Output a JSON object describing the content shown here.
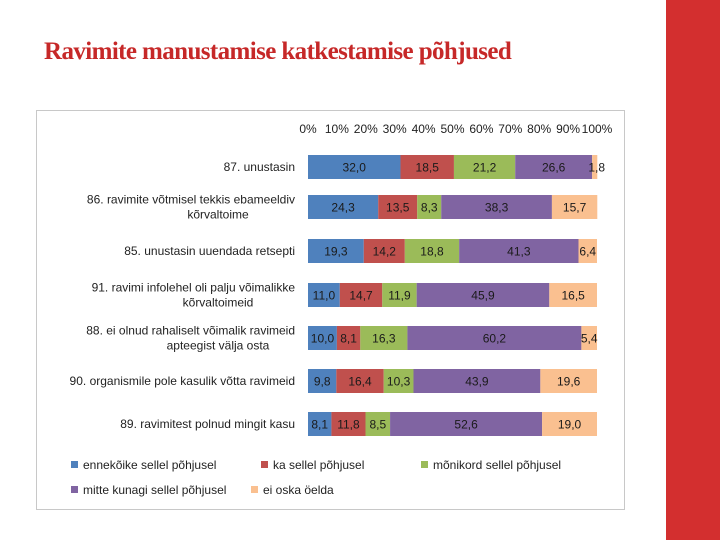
{
  "slide": {
    "title": "Ravimite manustamise katkestamise põhjused",
    "accent_color": "#d32f2f",
    "title_color": "#c62828"
  },
  "chart_data": {
    "type": "bar",
    "orientation": "horizontal",
    "stacked": true,
    "percent_stacked": true,
    "title": "",
    "xlabel": "",
    "ylabel": "",
    "xlim": [
      0,
      100
    ],
    "x_ticks": [
      "0%",
      "10%",
      "20%",
      "30%",
      "40%",
      "50%",
      "60%",
      "70%",
      "80%",
      "90%",
      "100%"
    ],
    "legend_position": "bottom",
    "categories": [
      [
        "87. unustasin"
      ],
      [
        "86. ravimite võtmisel tekkis ebameeldiv",
        "kõrvaltoime"
      ],
      [
        "85. unustasin uuendada retsepti"
      ],
      [
        "91. ravimi infolehel oli palju võimalikke",
        "kõrvaltoimeid"
      ],
      [
        "88. ei olnud rahaliselt võimalik ravimeid",
        "apteegist välja osta"
      ],
      [
        "90. organismile pole kasulik võtta ravimeid"
      ],
      [
        "89. ravimitest polnud mingit kasu"
      ]
    ],
    "series": [
      {
        "name": "ennekõike sellel põhjusel",
        "color": "#4f81bd",
        "values": [
          32.0,
          24.3,
          19.3,
          11.0,
          10.0,
          9.8,
          8.1
        ],
        "labels": [
          "32,0",
          "24,3",
          "19,3",
          "11,0",
          "10,0",
          "9,8",
          "8,1"
        ]
      },
      {
        "name": "ka sellel põhjusel",
        "color": "#c0504d",
        "values": [
          18.5,
          13.5,
          14.2,
          14.7,
          8.1,
          16.4,
          11.8
        ],
        "labels": [
          "18,5",
          "13,5",
          "14,2",
          "14,7",
          "8,1",
          "16,4",
          "11,8"
        ]
      },
      {
        "name": "mõnikord sellel põhjusel",
        "color": "#9bbb59",
        "values": [
          21.2,
          8.3,
          18.8,
          11.9,
          16.3,
          10.3,
          8.5
        ],
        "labels": [
          "21,2",
          "8,3",
          "18,8",
          "11,9",
          "16,3",
          "10,3",
          "8,5"
        ]
      },
      {
        "name": "mitte kunagi sellel põhjusel",
        "color": "#8064a2",
        "values": [
          26.6,
          38.3,
          41.3,
          45.9,
          60.2,
          43.9,
          52.6
        ],
        "labels": [
          "26,6",
          "38,3",
          "41,3",
          "45,9",
          "60,2",
          "43,9",
          "52,6"
        ]
      },
      {
        "name": "ei oska öelda",
        "color": "#fac090",
        "values": [
          1.8,
          15.7,
          6.4,
          16.5,
          5.4,
          19.6,
          19.0
        ],
        "labels": [
          "1,8",
          "15,7",
          "6,4",
          "16,5",
          "5,4",
          "19,6",
          "19,0"
        ]
      }
    ]
  }
}
